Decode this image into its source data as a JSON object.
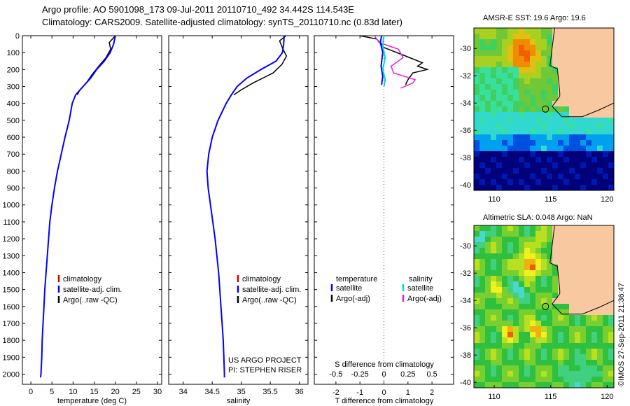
{
  "header": {
    "line1": "Argo profile: AO 5901098_173 09-Jul-2011 20110710_492 34.442S 114.543E",
    "line2": "Climatology: CARS2009. Satellite-adjusted climatology: synTS_20110710.nc (0.83d later)"
  },
  "credit": "©IMOS 27-Sep-2011 21:36:47",
  "colors": {
    "climatology": "#cc0000",
    "satellite": "#0000ff",
    "argo": "#000000",
    "sat_salinity": "#00d8d8",
    "argo_salinity": "#e020e0"
  },
  "chart_data": [
    {
      "id": "temperature",
      "type": "line",
      "xlabel": "temperature (deg C)",
      "ylabel": "depth",
      "xlim": [
        -2,
        31
      ],
      "ylim": [
        0,
        2060
      ],
      "xticks": [
        "0",
        "5",
        "10",
        "15",
        "20",
        "25",
        "30"
      ],
      "xtick_values": [
        0,
        5,
        10,
        15,
        20,
        25,
        30
      ],
      "yticks": [
        "0",
        "100",
        "200",
        "300",
        "400",
        "500",
        "600",
        "700",
        "800",
        "900",
        "1000",
        "1100",
        "1200",
        "1300",
        "1400",
        "1500",
        "1600",
        "1700",
        "1800",
        "1900",
        "2000"
      ],
      "ytick_values": [
        0,
        100,
        200,
        300,
        400,
        500,
        600,
        700,
        800,
        900,
        1000,
        1100,
        1200,
        1300,
        1400,
        1500,
        1600,
        1700,
        1800,
        1900,
        2000
      ],
      "legend": [
        "climatology",
        "satellite-adj. clim.",
        "Argo(..raw -QC)"
      ],
      "series": [
        {
          "name": "satellite-adj. clim.",
          "x": [
            20,
            19.6,
            18.8,
            17.4,
            15.6,
            14.2,
            12.4,
            10.6,
            9.8,
            9.1,
            8.1,
            7.2,
            6.3,
            5.6,
            5.0,
            4.5,
            4.2,
            3.9,
            3.6,
            3.3,
            3.1,
            2.9,
            2.7,
            2.6,
            2.4,
            2.3
          ],
          "depth": [
            0,
            50,
            100,
            150,
            200,
            250,
            300,
            350,
            400,
            500,
            600,
            700,
            800,
            900,
            1000,
            1100,
            1200,
            1300,
            1400,
            1500,
            1600,
            1700,
            1800,
            1900,
            2000,
            2020
          ]
        },
        {
          "name": "Argo(..raw -QC)",
          "x": [
            20,
            18.6,
            18.9,
            17.8,
            16.1,
            14.5,
            13.1,
            11.6,
            11.0
          ],
          "depth": [
            0,
            40,
            80,
            130,
            180,
            230,
            280,
            320,
            350
          ]
        }
      ]
    },
    {
      "id": "salinity",
      "type": "line",
      "xlabel": "salinity",
      "ylabel": "depth",
      "xlim": [
        33.75,
        36.15
      ],
      "ylim": [
        0,
        2060
      ],
      "xticks": [
        "34",
        "34.5",
        "35",
        "35.5",
        "36"
      ],
      "xtick_values": [
        34,
        34.5,
        35,
        35.5,
        36
      ],
      "legend": [
        "climatology",
        "satellite-adj. clim.",
        "Argo(..raw -QC)"
      ],
      "annotation": [
        "US ARGO PROJECT",
        "PI: STEPHEN RISER"
      ],
      "series": [
        {
          "name": "satellite-adj. clim.",
          "x": [
            35.74,
            35.73,
            35.71,
            35.6,
            35.34,
            35.1,
            34.93,
            34.83,
            34.74,
            34.6,
            34.5,
            34.44,
            34.41,
            34.43,
            34.47,
            34.51,
            34.55,
            34.58,
            34.61,
            34.63,
            34.65,
            34.67,
            34.69,
            34.7,
            34.71,
            34.71
          ],
          "depth": [
            0,
            50,
            100,
            150,
            200,
            250,
            300,
            350,
            400,
            500,
            600,
            700,
            800,
            900,
            1000,
            1100,
            1200,
            1300,
            1400,
            1500,
            1600,
            1700,
            1800,
            1900,
            2000,
            2020
          ]
        },
        {
          "name": "Argo(..raw -QC)",
          "x": [
            35.77,
            35.66,
            35.72,
            35.78,
            35.7,
            35.55,
            35.2,
            35.0,
            34.87
          ],
          "depth": [
            0,
            30,
            80,
            120,
            170,
            220,
            280,
            320,
            350
          ]
        }
      ]
    },
    {
      "id": "difference",
      "type": "line",
      "xlabel": "T difference from climatology",
      "xlabel2": "S difference from climatology",
      "xlim": [
        -2.9,
        2.9
      ],
      "ylim": [
        0,
        2060
      ],
      "xticks": [
        "-2",
        "-1",
        "0",
        "1",
        "2"
      ],
      "xtick_values": [
        -2,
        -1,
        0,
        1,
        2
      ],
      "xticks_s": [
        "-0.5",
        "-0.25",
        "0",
        "0.25",
        "0.5"
      ],
      "xtick_s_values": [
        -2,
        -1,
        0,
        1,
        2
      ],
      "legend_temperature": [
        "temperature",
        "satellite",
        "Argo(-adj)"
      ],
      "legend_salinity": [
        "salinity",
        "satellite",
        "Argo(-adj)"
      ],
      "series": [
        {
          "name": "temperature satellite",
          "x": [
            -0.1,
            -0.15,
            -0.05,
            -0.12,
            -0.05,
            -0.1
          ],
          "depth": [
            0,
            40,
            100,
            180,
            240,
            290
          ]
        },
        {
          "name": "temperature Argo(-adj)",
          "x": [
            -1.0,
            -0.3,
            0.0,
            0.9,
            1.6,
            1.4,
            1.8,
            1.2,
            1.0,
            0.9
          ],
          "depth": [
            0,
            20,
            70,
            120,
            160,
            180,
            200,
            220,
            260,
            290
          ]
        },
        {
          "name": "salinity satellite",
          "x": [
            0.0,
            -0.05,
            0.05,
            -0.05,
            0.05,
            0.0
          ],
          "depth": [
            0,
            60,
            130,
            200,
            260,
            300
          ]
        },
        {
          "name": "salinity Argo(-adj)",
          "x": [
            -0.4,
            -0.2,
            0.6,
            0.8,
            0.3,
            0.4,
            1.3,
            1.2,
            0.7
          ],
          "depth": [
            0,
            40,
            80,
            130,
            180,
            220,
            260,
            280,
            310
          ]
        }
      ]
    },
    {
      "id": "sst_map",
      "type": "heatmap",
      "title": "AMSR-E SST: 19.6 Argo: 19.6",
      "xticks": [
        "110",
        "115",
        "120"
      ],
      "xtick_values": [
        110,
        115,
        120
      ],
      "yticks": [
        "-30",
        "-32",
        "-34",
        "-36",
        "-38",
        "-40"
      ],
      "ytick_values": [
        -30,
        -32,
        -34,
        -36,
        -38,
        -40
      ],
      "xlim": [
        108.2,
        120.6
      ],
      "ylim": [
        -40.4,
        -28.5
      ],
      "profile_location": [
        114.54,
        -34.44
      ]
    },
    {
      "id": "sla_map",
      "type": "heatmap",
      "title": "Altimetric SLA: 0.048 Argo: NaN",
      "xticks": [
        "110",
        "115",
        "120"
      ],
      "xtick_values": [
        110,
        115,
        120
      ],
      "yticks": [
        "-30",
        "-32",
        "-34",
        "-36",
        "-38",
        "-40"
      ],
      "ytick_values": [
        -30,
        -32,
        -34,
        -36,
        -38,
        -40
      ],
      "xlim": [
        108.2,
        120.6
      ],
      "ylim": [
        -40.4,
        -28.5
      ],
      "profile_location": [
        114.54,
        -34.44
      ]
    }
  ]
}
